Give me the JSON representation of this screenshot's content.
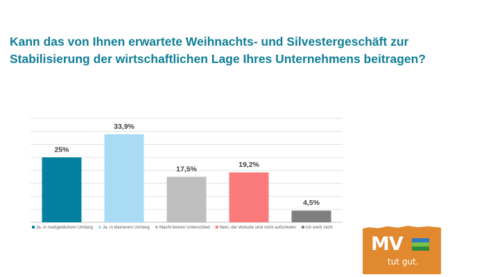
{
  "title": "Kann das von Ihnen erwartete Weihnachts- und Silvestergeschäft zur Stabilisierung der wirtschaftlichen Lage Ihres Unternehmens beitragen?",
  "chart_data": {
    "type": "bar",
    "title": "",
    "xlabel": "",
    "ylabel": "",
    "ylim": [
      0,
      40
    ],
    "grid": true,
    "legend_position": "bottom",
    "series": [
      {
        "name": "Ja, in maßgeblichem Umfang",
        "value": 25,
        "label": "25%",
        "color": "#03809f"
      },
      {
        "name": "Ja, in kleinerem Umfang",
        "value": 33.9,
        "label": "33,9%",
        "color": "#a9dcf4"
      },
      {
        "name": "Macht keinen Unterschied",
        "value": 17.5,
        "label": "17,5%",
        "color": "#bfbfbf"
      },
      {
        "name": "Nein, die Verluste sind nicht aufzuholen",
        "value": 19.2,
        "label": "19,2%",
        "color": "#fa7b7b"
      },
      {
        "name": "Ich weiß nicht",
        "value": 4.5,
        "label": "4,5%",
        "color": "#7f7f7f"
      }
    ]
  },
  "logo": {
    "main": "MV",
    "tagline": "tut gut.",
    "colors": {
      "background": "#e0892f",
      "flag": [
        "#2e7bc4",
        "#7ac043",
        "#2d8a3e"
      ]
    }
  }
}
